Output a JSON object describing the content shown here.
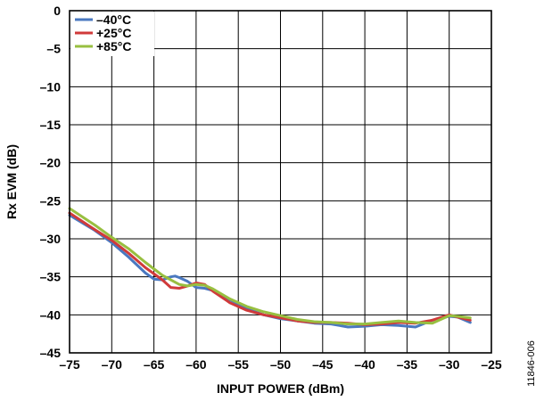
{
  "chart_data": {
    "type": "line",
    "title": "",
    "xlabel": "INPUT POWER (dBm)",
    "ylabel": "Rx EVM (dB)",
    "xlim": [
      -75,
      -25
    ],
    "ylim": [
      -45,
      0
    ],
    "x_ticks": [
      -75,
      -70,
      -65,
      -60,
      -55,
      -50,
      -45,
      -40,
      -35,
      -30,
      -25
    ],
    "y_ticks": [
      0,
      -5,
      -10,
      -15,
      -20,
      -25,
      -30,
      -35,
      -40,
      -45
    ],
    "x_tick_labels": [
      "–75",
      "–70",
      "–65",
      "–60",
      "–55",
      "–50",
      "–45",
      "–40",
      "–35",
      "–30",
      "–25"
    ],
    "y_tick_labels": [
      "0",
      "–5",
      "–10",
      "–15",
      "–20",
      "–25",
      "–30",
      "–35",
      "–40",
      "–45"
    ],
    "grid": true,
    "legend_position": "top-left",
    "figure_id": "11846-006",
    "series": [
      {
        "name": "–40°C",
        "color": "#4a78c0",
        "x": [
          -75,
          -72,
          -70,
          -68,
          -66,
          -65,
          -64,
          -63,
          -62.5,
          -62,
          -61,
          -60,
          -59,
          -58,
          -56,
          -54,
          -52,
          -50,
          -48,
          -46,
          -44,
          -42,
          -40,
          -38,
          -36,
          -34,
          -32,
          -30,
          -29,
          -27.5
        ],
        "y": [
          -26.9,
          -28.9,
          -30.5,
          -32.4,
          -34.5,
          -35.3,
          -35.4,
          -35.0,
          -34.9,
          -35.1,
          -35.6,
          -36.4,
          -36.5,
          -36.8,
          -38.0,
          -39.2,
          -40.0,
          -40.5,
          -40.8,
          -41.1,
          -41.2,
          -41.6,
          -41.5,
          -41.3,
          -41.4,
          -41.6,
          -40.7,
          -40.2,
          -40.3,
          -41.0
        ]
      },
      {
        "name": "+25°C",
        "color": "#d03a3a",
        "x": [
          -75,
          -72,
          -70,
          -68,
          -66,
          -64,
          -63,
          -62,
          -61,
          -60,
          -59,
          -58,
          -56,
          -54,
          -52,
          -50,
          -48,
          -46,
          -44,
          -42,
          -40,
          -38,
          -36,
          -34,
          -32,
          -30,
          -29,
          -27.5
        ],
        "y": [
          -26.6,
          -28.8,
          -30.2,
          -31.9,
          -33.8,
          -35.4,
          -36.4,
          -36.5,
          -36.2,
          -35.8,
          -36.0,
          -36.9,
          -38.4,
          -39.4,
          -40.0,
          -40.4,
          -40.8,
          -41.0,
          -41.0,
          -41.1,
          -41.3,
          -41.2,
          -41.0,
          -41.1,
          -40.7,
          -40.0,
          -40.3,
          -40.7
        ]
      },
      {
        "name": "+85°C",
        "color": "#98bf40",
        "x": [
          -75,
          -72,
          -70,
          -68,
          -66,
          -64,
          -62,
          -61,
          -60,
          -59,
          -58,
          -56,
          -54,
          -52,
          -50,
          -48,
          -46,
          -44,
          -42,
          -40,
          -38,
          -36,
          -34,
          -32,
          -30,
          -29,
          -27.5
        ],
        "y": [
          -26.0,
          -28.2,
          -29.8,
          -31.3,
          -33.1,
          -34.8,
          -36.0,
          -36.2,
          -36.0,
          -36.1,
          -36.6,
          -37.9,
          -38.9,
          -39.6,
          -40.1,
          -40.6,
          -40.9,
          -41.0,
          -41.2,
          -41.2,
          -41.0,
          -40.8,
          -41.0,
          -41.1,
          -40.1,
          -40.2,
          -40.4
        ]
      }
    ]
  }
}
